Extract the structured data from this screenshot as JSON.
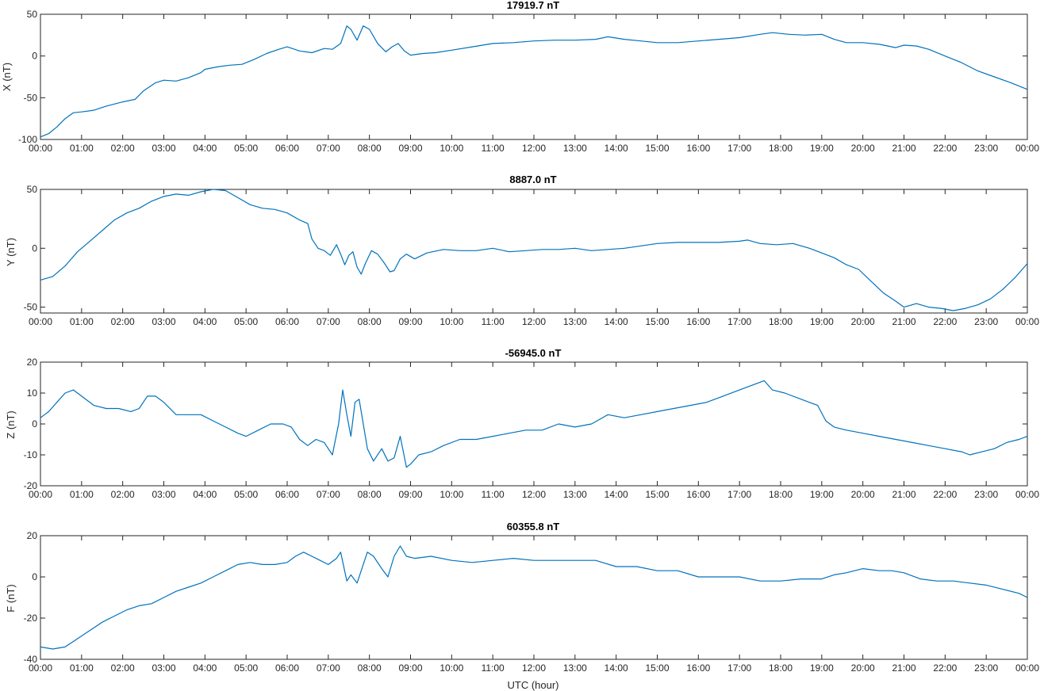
{
  "xlabel": "UTC (hour)",
  "line_color": "#0072BD",
  "chart_data": [
    {
      "type": "line",
      "title": "17919.7 nT",
      "ylabel": "X (nT)",
      "xlim": [
        0,
        24
      ],
      "ylim": [
        -100,
        50
      ],
      "yticks": [
        -100,
        -50,
        0,
        50
      ],
      "xticklabels": [
        "00:00",
        "01:00",
        "02:00",
        "03:00",
        "04:00",
        "05:00",
        "06:00",
        "07:00",
        "08:00",
        "09:00",
        "10:00",
        "11:00",
        "12:00",
        "13:00",
        "14:00",
        "15:00",
        "16:00",
        "17:00",
        "18:00",
        "19:00",
        "20:00",
        "21:00",
        "22:00",
        "23:00",
        "00:00"
      ],
      "series": [
        {
          "x": [
            0,
            0.2,
            0.4,
            0.6,
            0.8,
            1.0,
            1.3,
            1.6,
            2.0,
            2.3,
            2.5,
            2.8,
            3.0,
            3.3,
            3.6,
            3.9,
            4.0,
            4.3,
            4.6,
            4.9,
            5.2,
            5.5,
            5.8,
            6.0,
            6.3,
            6.6,
            6.9,
            7.1,
            7.3,
            7.45,
            7.55,
            7.7,
            7.85,
            8.0,
            8.2,
            8.4,
            8.55,
            8.7,
            8.85,
            9.0,
            9.3,
            9.6,
            10.0,
            10.5,
            11.0,
            11.5,
            12.0,
            12.5,
            13.0,
            13.5,
            13.8,
            14.2,
            14.6,
            15.0,
            15.5,
            16.0,
            16.5,
            17.0,
            17.5,
            17.8,
            18.2,
            18.6,
            19.0,
            19.3,
            19.6,
            20.0,
            20.4,
            20.8,
            21.0,
            21.3,
            21.6,
            22.0,
            22.4,
            22.8,
            23.2,
            23.6,
            24.0
          ],
          "y": [
            -97,
            -93,
            -85,
            -75,
            -68,
            -67,
            -65,
            -60,
            -55,
            -52,
            -42,
            -32,
            -29,
            -30,
            -26,
            -20,
            -16,
            -13,
            -11,
            -10,
            -4,
            3,
            8,
            11,
            6,
            4,
            9,
            8,
            15,
            36,
            32,
            19,
            36,
            32,
            15,
            5,
            11,
            15,
            6,
            1,
            3,
            4,
            7,
            11,
            15,
            16,
            18,
            19,
            19,
            20,
            23,
            20,
            18,
            16,
            16,
            18,
            20,
            22,
            26,
            28,
            26,
            25,
            26,
            20,
            16,
            16,
            14,
            10,
            13,
            12,
            8,
            0,
            -8,
            -18,
            -25,
            -32,
            -40
          ]
        }
      ]
    },
    {
      "type": "line",
      "title": "8887.0 nT",
      "ylabel": "Y (nT)",
      "xlim": [
        0,
        24
      ],
      "ylim": [
        -55,
        50
      ],
      "yticks": [
        -50,
        0,
        50
      ],
      "xticklabels": [
        "00:00",
        "01:00",
        "02:00",
        "03:00",
        "04:00",
        "05:00",
        "06:00",
        "07:00",
        "08:00",
        "09:00",
        "10:00",
        "11:00",
        "12:00",
        "13:00",
        "14:00",
        "15:00",
        "16:00",
        "17:00",
        "18:00",
        "19:00",
        "20:00",
        "21:00",
        "22:00",
        "23:00",
        "00:00"
      ],
      "series": [
        {
          "x": [
            0,
            0.3,
            0.6,
            0.9,
            1.2,
            1.5,
            1.8,
            2.1,
            2.4,
            2.7,
            3.0,
            3.3,
            3.6,
            3.9,
            4.2,
            4.5,
            4.8,
            5.1,
            5.4,
            5.7,
            6.0,
            6.3,
            6.5,
            6.6,
            6.75,
            6.9,
            7.05,
            7.2,
            7.3,
            7.4,
            7.5,
            7.6,
            7.7,
            7.8,
            7.9,
            8.05,
            8.2,
            8.35,
            8.5,
            8.6,
            8.75,
            8.9,
            9.1,
            9.4,
            9.8,
            10.2,
            10.6,
            11.0,
            11.4,
            11.8,
            12.2,
            12.6,
            13.0,
            13.4,
            13.8,
            14.2,
            14.6,
            15.0,
            15.5,
            16.0,
            16.5,
            17.0,
            17.2,
            17.5,
            17.9,
            18.3,
            18.7,
            19.0,
            19.3,
            19.6,
            19.9,
            20.2,
            20.5,
            20.8,
            21.0,
            21.3,
            21.6,
            21.9,
            22.2,
            22.5,
            22.8,
            23.1,
            23.4,
            23.7,
            24.0
          ],
          "y": [
            -27,
            -24,
            -15,
            -3,
            6,
            15,
            24,
            30,
            34,
            40,
            44,
            46,
            45,
            48,
            50,
            49,
            43,
            37,
            34,
            33,
            30,
            24,
            21,
            8,
            0,
            -2,
            -6,
            3,
            -5,
            -14,
            -6,
            -3,
            -16,
            -22,
            -13,
            -2,
            -5,
            -12,
            -20,
            -19,
            -9,
            -5,
            -9,
            -4,
            -1,
            -2,
            -2,
            0,
            -3,
            -2,
            -1,
            -1,
            0,
            -2,
            -1,
            0,
            2,
            4,
            5,
            5,
            5,
            6,
            7,
            4,
            3,
            4,
            0,
            -4,
            -8,
            -14,
            -18,
            -28,
            -38,
            -45,
            -50,
            -47,
            -50,
            -51,
            -53,
            -51,
            -48,
            -43,
            -35,
            -25,
            -13
          ]
        }
      ]
    },
    {
      "type": "line",
      "title": "-56945.0 nT",
      "ylabel": "Z (nT)",
      "xlim": [
        0,
        24
      ],
      "ylim": [
        -20,
        20
      ],
      "yticks": [
        -20,
        -10,
        0,
        10,
        20
      ],
      "xticklabels": [
        "00:00",
        "01:00",
        "02:00",
        "03:00",
        "04:00",
        "05:00",
        "06:00",
        "07:00",
        "08:00",
        "09:00",
        "10:00",
        "11:00",
        "12:00",
        "13:00",
        "14:00",
        "15:00",
        "16:00",
        "17:00",
        "18:00",
        "19:00",
        "20:00",
        "21:00",
        "22:00",
        "23:00",
        "00:00"
      ],
      "series": [
        {
          "x": [
            0,
            0.2,
            0.4,
            0.6,
            0.8,
            1.0,
            1.3,
            1.6,
            1.9,
            2.2,
            2.4,
            2.6,
            2.8,
            3.0,
            3.3,
            3.6,
            3.9,
            4.2,
            4.5,
            4.8,
            5.0,
            5.3,
            5.6,
            5.9,
            6.1,
            6.3,
            6.5,
            6.7,
            6.9,
            7.1,
            7.25,
            7.35,
            7.45,
            7.55,
            7.65,
            7.75,
            7.85,
            7.95,
            8.1,
            8.3,
            8.45,
            8.6,
            8.75,
            8.9,
            9.0,
            9.2,
            9.5,
            9.8,
            10.2,
            10.6,
            11.0,
            11.4,
            11.8,
            12.2,
            12.6,
            13.0,
            13.4,
            13.8,
            14.2,
            14.6,
            15.0,
            15.4,
            15.8,
            16.2,
            16.6,
            17.0,
            17.4,
            17.6,
            17.8,
            18.1,
            18.5,
            18.9,
            19.1,
            19.3,
            19.6,
            20.0,
            20.4,
            20.8,
            21.2,
            21.6,
            22.0,
            22.4,
            22.6,
            22.9,
            23.2,
            23.5,
            23.8,
            24.0
          ],
          "y": [
            2,
            4,
            7,
            10,
            11,
            9,
            6,
            5,
            5,
            4,
            5,
            9,
            9,
            7,
            3,
            3,
            3,
            1,
            -1,
            -3,
            -4,
            -2,
            0,
            0,
            -1,
            -5,
            -7,
            -5,
            -6,
            -10,
            0,
            11,
            3,
            -4,
            7,
            8,
            0,
            -8,
            -12,
            -8,
            -12,
            -11,
            -4,
            -14,
            -13,
            -10,
            -9,
            -7,
            -5,
            -5,
            -4,
            -3,
            -2,
            -2,
            0,
            -1,
            0,
            3,
            2,
            3,
            4,
            5,
            6,
            7,
            9,
            11,
            13,
            14,
            11,
            10,
            8,
            6,
            1,
            -1,
            -2,
            -3,
            -4,
            -5,
            -6,
            -7,
            -8,
            -9,
            -10,
            -9,
            -8,
            -6,
            -5,
            -4
          ]
        }
      ]
    },
    {
      "type": "line",
      "title": "60355.8 nT",
      "ylabel": "F (nT)",
      "xlim": [
        0,
        24
      ],
      "ylim": [
        -40,
        20
      ],
      "yticks": [
        -40,
        -20,
        0,
        20
      ],
      "xticklabels": [
        "00:00",
        "01:00",
        "02:00",
        "03:00",
        "04:00",
        "05:00",
        "06:00",
        "07:00",
        "08:00",
        "09:00",
        "10:00",
        "11:00",
        "12:00",
        "13:00",
        "14:00",
        "15:00",
        "16:00",
        "17:00",
        "18:00",
        "19:00",
        "20:00",
        "21:00",
        "22:00",
        "23:00",
        "00:00"
      ],
      "series": [
        {
          "x": [
            0,
            0.3,
            0.6,
            0.9,
            1.2,
            1.5,
            1.8,
            2.1,
            2.4,
            2.7,
            3.0,
            3.3,
            3.6,
            3.9,
            4.2,
            4.5,
            4.8,
            5.1,
            5.4,
            5.7,
            6.0,
            6.2,
            6.4,
            6.6,
            6.8,
            7.0,
            7.2,
            7.3,
            7.45,
            7.55,
            7.7,
            7.8,
            7.95,
            8.1,
            8.3,
            8.45,
            8.6,
            8.75,
            8.9,
            9.1,
            9.5,
            10.0,
            10.5,
            11.0,
            11.5,
            12.0,
            12.5,
            13.0,
            13.5,
            14.0,
            14.5,
            15.0,
            15.5,
            16.0,
            16.5,
            17.0,
            17.5,
            18.0,
            18.5,
            19.0,
            19.3,
            19.6,
            20.0,
            20.4,
            20.7,
            21.0,
            21.4,
            21.8,
            22.2,
            22.6,
            23.0,
            23.4,
            23.8,
            24.0
          ],
          "y": [
            -34,
            -35,
            -34,
            -30,
            -26,
            -22,
            -19,
            -16,
            -14,
            -13,
            -10,
            -7,
            -5,
            -3,
            0,
            3,
            6,
            7,
            6,
            6,
            7,
            10,
            12,
            10,
            8,
            6,
            9,
            12,
            -2,
            1,
            -3,
            3,
            12,
            10,
            4,
            0,
            10,
            15,
            10,
            9,
            10,
            8,
            7,
            8,
            9,
            8,
            8,
            8,
            8,
            5,
            5,
            3,
            3,
            0,
            0,
            0,
            -2,
            -2,
            -1,
            -1,
            1,
            2,
            4,
            3,
            3,
            2,
            -1,
            -2,
            -2,
            -3,
            -4,
            -6,
            -8,
            -10
          ]
        }
      ]
    }
  ]
}
